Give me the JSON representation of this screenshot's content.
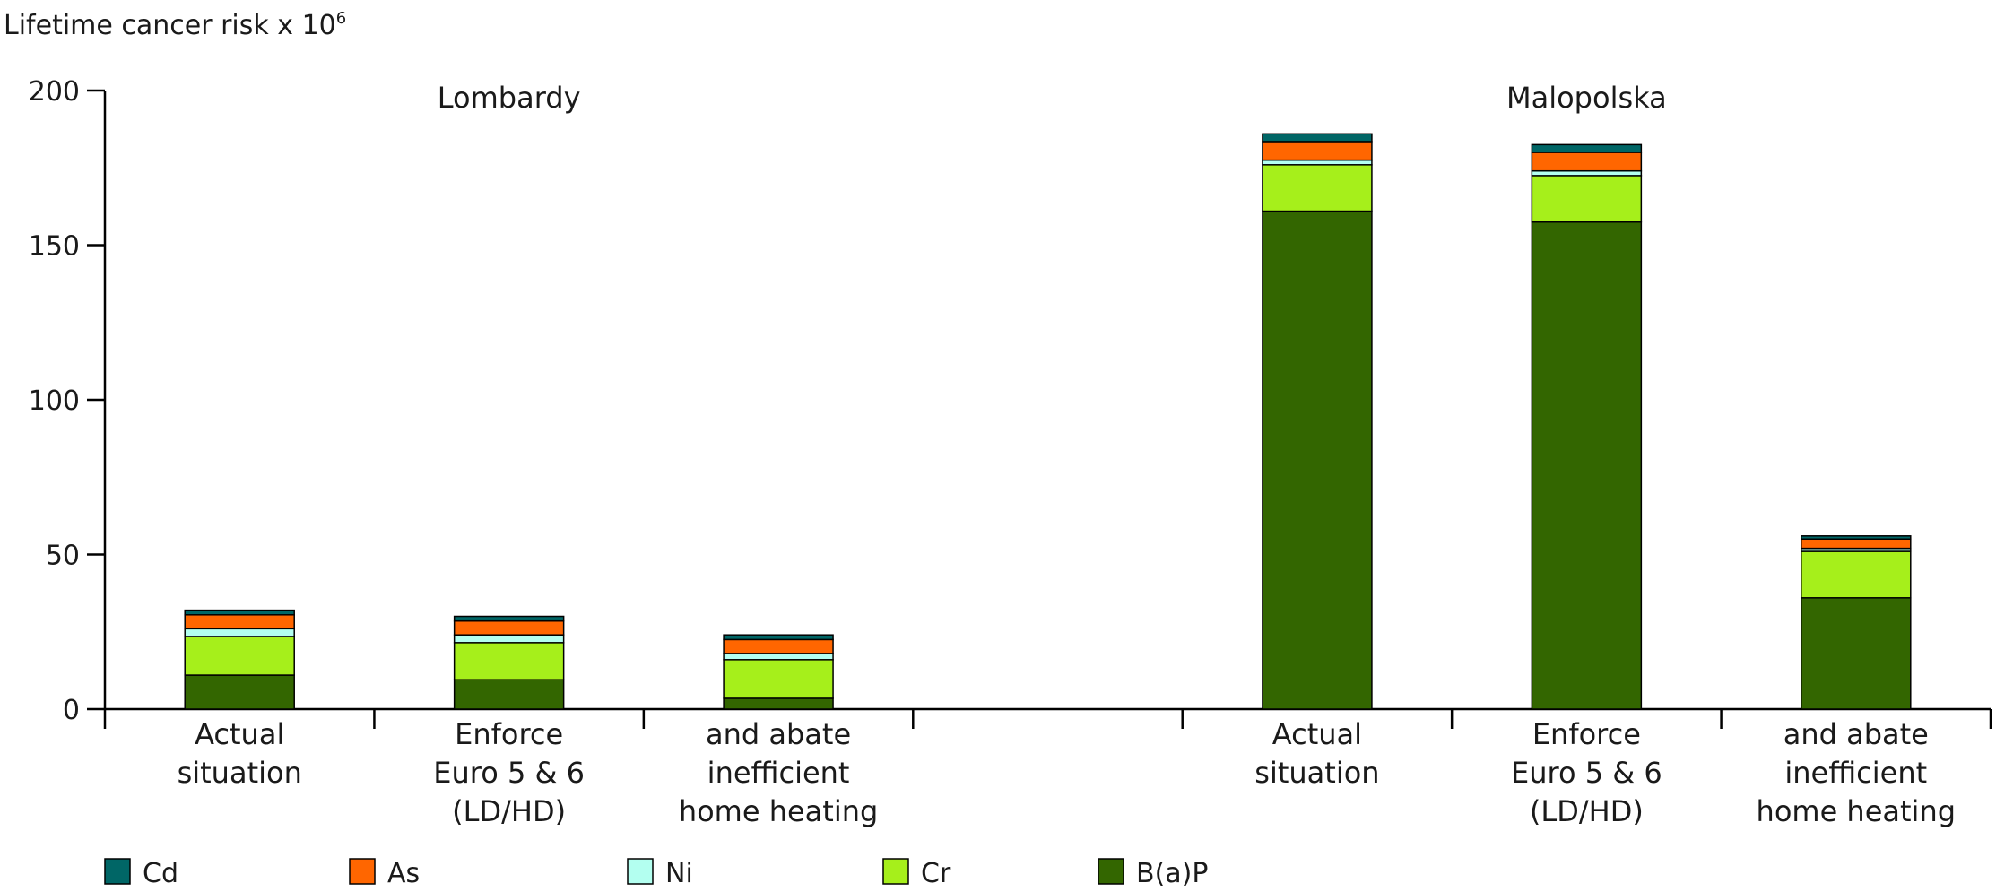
{
  "chart_data": {
    "type": "bar",
    "stacked": true,
    "ylabel": "Lifetime cancer risk x 10",
    "ylabel_superscript": "6",
    "ylim": [
      0,
      200
    ],
    "yticks": [
      0,
      50,
      100,
      150,
      200
    ],
    "grid": false,
    "legend_position": "bottom",
    "groups": [
      "Lombardy",
      "Malopolska"
    ],
    "categories": [
      {
        "group": "Lombardy",
        "lines": [
          "Actual",
          "situation"
        ]
      },
      {
        "group": "Lombardy",
        "lines": [
          "Enforce",
          "Euro 5 & 6",
          "(LD/HD)"
        ]
      },
      {
        "group": "Lombardy",
        "lines": [
          "and abate",
          "inefficient",
          "home heating"
        ]
      },
      {
        "group": "",
        "lines": []
      },
      {
        "group": "Malopolska",
        "lines": [
          "Actual",
          "situation"
        ]
      },
      {
        "group": "Malopolska",
        "lines": [
          "Enforce",
          "Euro 5 & 6",
          "(LD/HD)"
        ]
      },
      {
        "group": "Malopolska",
        "lines": [
          "and abate",
          "inefficient",
          "home heating"
        ]
      }
    ],
    "series": [
      {
        "name": "B(a)P",
        "color": "#336600",
        "values": [
          11,
          9.5,
          3.5,
          null,
          161,
          157.5,
          36
        ]
      },
      {
        "name": "Cr",
        "color": "#a6ef1b",
        "values": [
          12.5,
          12,
          12.5,
          null,
          15,
          15,
          15
        ]
      },
      {
        "name": "Ni",
        "color": "#b3fff0",
        "values": [
          2.5,
          2.5,
          2,
          null,
          1.5,
          1.5,
          1
        ]
      },
      {
        "name": "As",
        "color": "#ff6600",
        "values": [
          4.5,
          4.5,
          4.5,
          null,
          6,
          6,
          3
        ]
      },
      {
        "name": "Cd",
        "color": "#006666",
        "values": [
          1.5,
          1.5,
          1.5,
          null,
          2.5,
          2.5,
          1
        ]
      }
    ],
    "legend_order": [
      "Cd",
      "As",
      "Ni",
      "Cr",
      "B(a)P"
    ]
  }
}
